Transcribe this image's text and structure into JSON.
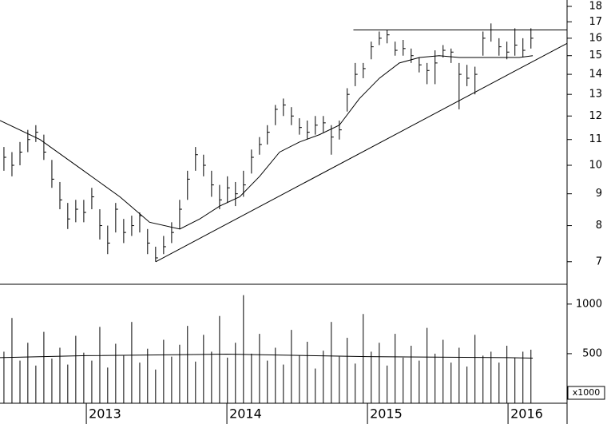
{
  "chart_data": {
    "type": "ohlc",
    "color": "#000000",
    "log": true,
    "x": [
      2012.414,
      2012.471,
      2012.528,
      2012.584,
      2012.641,
      2012.698,
      2012.755,
      2012.812,
      2012.868,
      2012.925,
      2012.982,
      2013.039,
      2013.096,
      2013.152,
      2013.209,
      2013.266,
      2013.323,
      2013.38,
      2013.436,
      2013.493,
      2013.55,
      2013.607,
      2013.664,
      2013.72,
      2013.777,
      2013.834,
      2013.891,
      2013.948,
      2014.004,
      2014.061,
      2014.118,
      2014.175,
      2014.232,
      2014.288,
      2014.345,
      2014.402,
      2014.459,
      2014.516,
      2014.572,
      2014.629,
      2014.686,
      2014.743,
      2014.8,
      2014.856,
      2014.913,
      2014.97,
      2015.027,
      2015.084,
      2015.14,
      2015.197,
      2015.254,
      2015.311,
      2015.368,
      2015.424,
      2015.481,
      2015.538,
      2015.595,
      2015.652,
      2015.708,
      2015.765,
      2015.822,
      2015.879,
      2015.936,
      2015.992,
      2016.049,
      2016.106,
      2016.163
    ],
    "high": [
      10.7,
      10.5,
      10.9,
      11.4,
      11.6,
      11.2,
      10.2,
      9.4,
      8.7,
      8.8,
      8.8,
      9.2,
      8.5,
      8.0,
      8.7,
      8.2,
      8.3,
      8.4,
      7.9,
      7.4,
      7.7,
      8.1,
      8.8,
      9.8,
      10.7,
      10.4,
      9.8,
      9.3,
      9.6,
      9.4,
      9.8,
      10.6,
      11.1,
      11.6,
      12.5,
      12.8,
      12.4,
      11.9,
      11.8,
      12.0,
      12.0,
      11.6,
      11.8,
      13.3,
      14.6,
      14.6,
      15.8,
      16.4,
      16.5,
      15.8,
      15.9,
      15.4,
      14.9,
      14.6,
      15.3,
      15.6,
      15.4,
      14.6,
      14.5,
      14.4,
      16.4,
      16.9,
      16.0,
      15.8,
      16.6,
      16.0,
      16.6
    ],
    "low": [
      9.8,
      9.6,
      10.0,
      10.5,
      10.9,
      10.2,
      9.2,
      8.5,
      7.9,
      8.1,
      8.1,
      8.5,
      7.6,
      7.2,
      7.8,
      7.5,
      7.7,
      7.8,
      7.2,
      7.0,
      7.2,
      7.5,
      7.9,
      8.8,
      9.8,
      9.6,
      8.9,
      8.5,
      8.7,
      8.6,
      8.9,
      9.7,
      10.4,
      10.8,
      11.6,
      12.0,
      11.6,
      11.2,
      11.0,
      11.2,
      11.3,
      10.4,
      11.0,
      12.2,
      13.4,
      13.8,
      14.8,
      15.6,
      15.7,
      15.0,
      15.0,
      14.6,
      14.1,
      13.5,
      13.5,
      14.9,
      14.6,
      12.3,
      13.4,
      13.0,
      15.0,
      15.8,
      15.0,
      14.8,
      15.0,
      14.9,
      15.4
    ],
    "close": [
      10.3,
      10.0,
      10.5,
      11.0,
      11.3,
      10.5,
      9.5,
      8.8,
      8.2,
      8.5,
      8.4,
      8.9,
      8.0,
      7.5,
      8.5,
      7.8,
      8.0,
      8.3,
      7.5,
      7.1,
      7.4,
      7.8,
      8.5,
      9.5,
      10.4,
      10.0,
      9.3,
      8.8,
      9.2,
      9.0,
      9.3,
      10.3,
      10.8,
      11.3,
      12.3,
      12.5,
      12.0,
      11.5,
      11.3,
      11.6,
      11.7,
      11.1,
      11.4,
      13.0,
      14.0,
      14.3,
      15.5,
      16.0,
      16.2,
      15.3,
      15.4,
      15.0,
      14.5,
      14.2,
      14.6,
      15.3,
      15.2,
      14.0,
      13.8,
      14.0,
      16.0,
      16.5,
      15.5,
      15.2,
      15.6,
      15.3,
      16.0
    ],
    "volume": [
      520,
      860,
      430,
      610,
      380,
      720,
      450,
      560,
      390,
      680,
      510,
      430,
      770,
      360,
      600,
      480,
      820,
      410,
      550,
      340,
      640,
      470,
      590,
      780,
      420,
      690,
      520,
      880,
      460,
      610,
      1090,
      500,
      700,
      430,
      560,
      390,
      740,
      480,
      620,
      350,
      530,
      820,
      470,
      660,
      400,
      900,
      520,
      610,
      380,
      700,
      460,
      580,
      430,
      760,
      500,
      640,
      410,
      560,
      370,
      690,
      480,
      520,
      410,
      580,
      460,
      520,
      540
    ],
    "xlim": [
      2012.386,
      2016.42
    ],
    "xticks": [
      2013,
      2014,
      2015,
      2016
    ],
    "ylim": [
      6.44,
      18.43
    ],
    "yticks": [
      7,
      8,
      9,
      10,
      11,
      12,
      13,
      14,
      15,
      16,
      17,
      18
    ],
    "volume_ylim": [
      0,
      1200
    ],
    "volume_yticks": [
      500,
      1000
    ],
    "volume_unit": "x1000",
    "ma": {
      "x": [
        2012.386,
        2012.67,
        2012.954,
        2013.239,
        2013.45,
        2013.665,
        2013.807,
        2013.949,
        2014.091,
        2014.233,
        2014.375,
        2014.517,
        2014.659,
        2014.8,
        2014.943,
        2015.085,
        2015.227,
        2015.37,
        2015.51,
        2015.653,
        2015.795,
        2015.937,
        2016.08,
        2016.176
      ],
      "values": [
        11.8,
        11.0,
        9.9,
        8.9,
        8.1,
        7.9,
        8.2,
        8.6,
        8.9,
        9.6,
        10.5,
        10.9,
        11.2,
        11.6,
        12.8,
        13.8,
        14.6,
        14.9,
        15.0,
        14.9,
        14.9,
        14.9,
        14.9,
        15.0
      ]
    },
    "volume_ma": {
      "x": [
        2012.386,
        2013.0,
        2014.0,
        2015.0,
        2016.0,
        2016.176
      ],
      "values": [
        460,
        480,
        495,
        470,
        460,
        455
      ]
    },
    "lines": [
      {
        "x": [
          2014.9,
          2016.42
        ],
        "y": [
          16.5,
          16.5
        ]
      },
      {
        "x": [
          2013.494,
          2016.42
        ],
        "y": [
          7.0,
          15.7
        ]
      }
    ]
  }
}
